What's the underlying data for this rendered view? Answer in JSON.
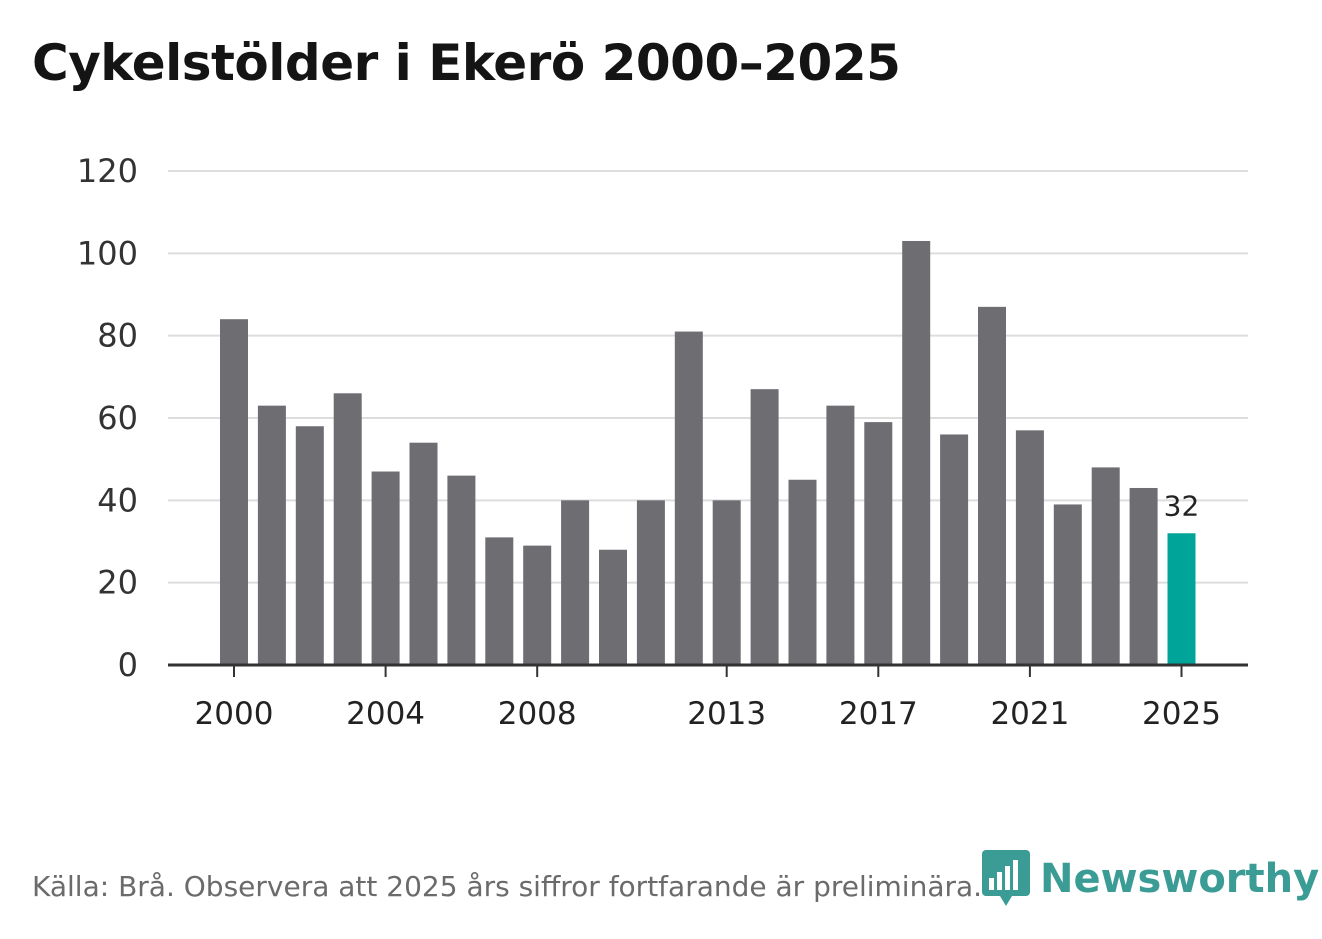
{
  "title": "Cykelstölder i Ekerö 2000–2025",
  "source": "Källa: Brå. Observera att 2025 års siffror fortfarande är preliminära.",
  "brand": "Newsworthy",
  "colors": {
    "bar": "#6e6d72",
    "highlight": "#00a498",
    "grid": "#dddddd",
    "axis": "#333333",
    "brand": "#3a9c95"
  },
  "chart_data": {
    "type": "bar",
    "title": "Cykelstölder i Ekerö 2000–2025",
    "xlabel": "",
    "ylabel": "",
    "categories": [
      "2000",
      "2001",
      "2002",
      "2003",
      "2004",
      "2005",
      "2006",
      "2007",
      "2008",
      "2009",
      "2010",
      "2011",
      "2012",
      "2013",
      "2014",
      "2015",
      "2016",
      "2017",
      "2018",
      "2019",
      "2020",
      "2021",
      "2022",
      "2023",
      "2024",
      "2025"
    ],
    "values": [
      84,
      63,
      58,
      66,
      47,
      54,
      46,
      31,
      29,
      40,
      28,
      40,
      81,
      40,
      67,
      45,
      63,
      59,
      103,
      56,
      87,
      57,
      39,
      48,
      43,
      32
    ],
    "ylim": [
      0,
      120
    ],
    "yticks": [
      "0",
      "20",
      "40",
      "60",
      "80",
      "100",
      "120"
    ],
    "xtick_labels": [
      "2000",
      "2004",
      "2008",
      "2013",
      "2017",
      "2021",
      "2025"
    ],
    "highlight": {
      "category": "2025",
      "label": "32"
    },
    "grid": true
  }
}
